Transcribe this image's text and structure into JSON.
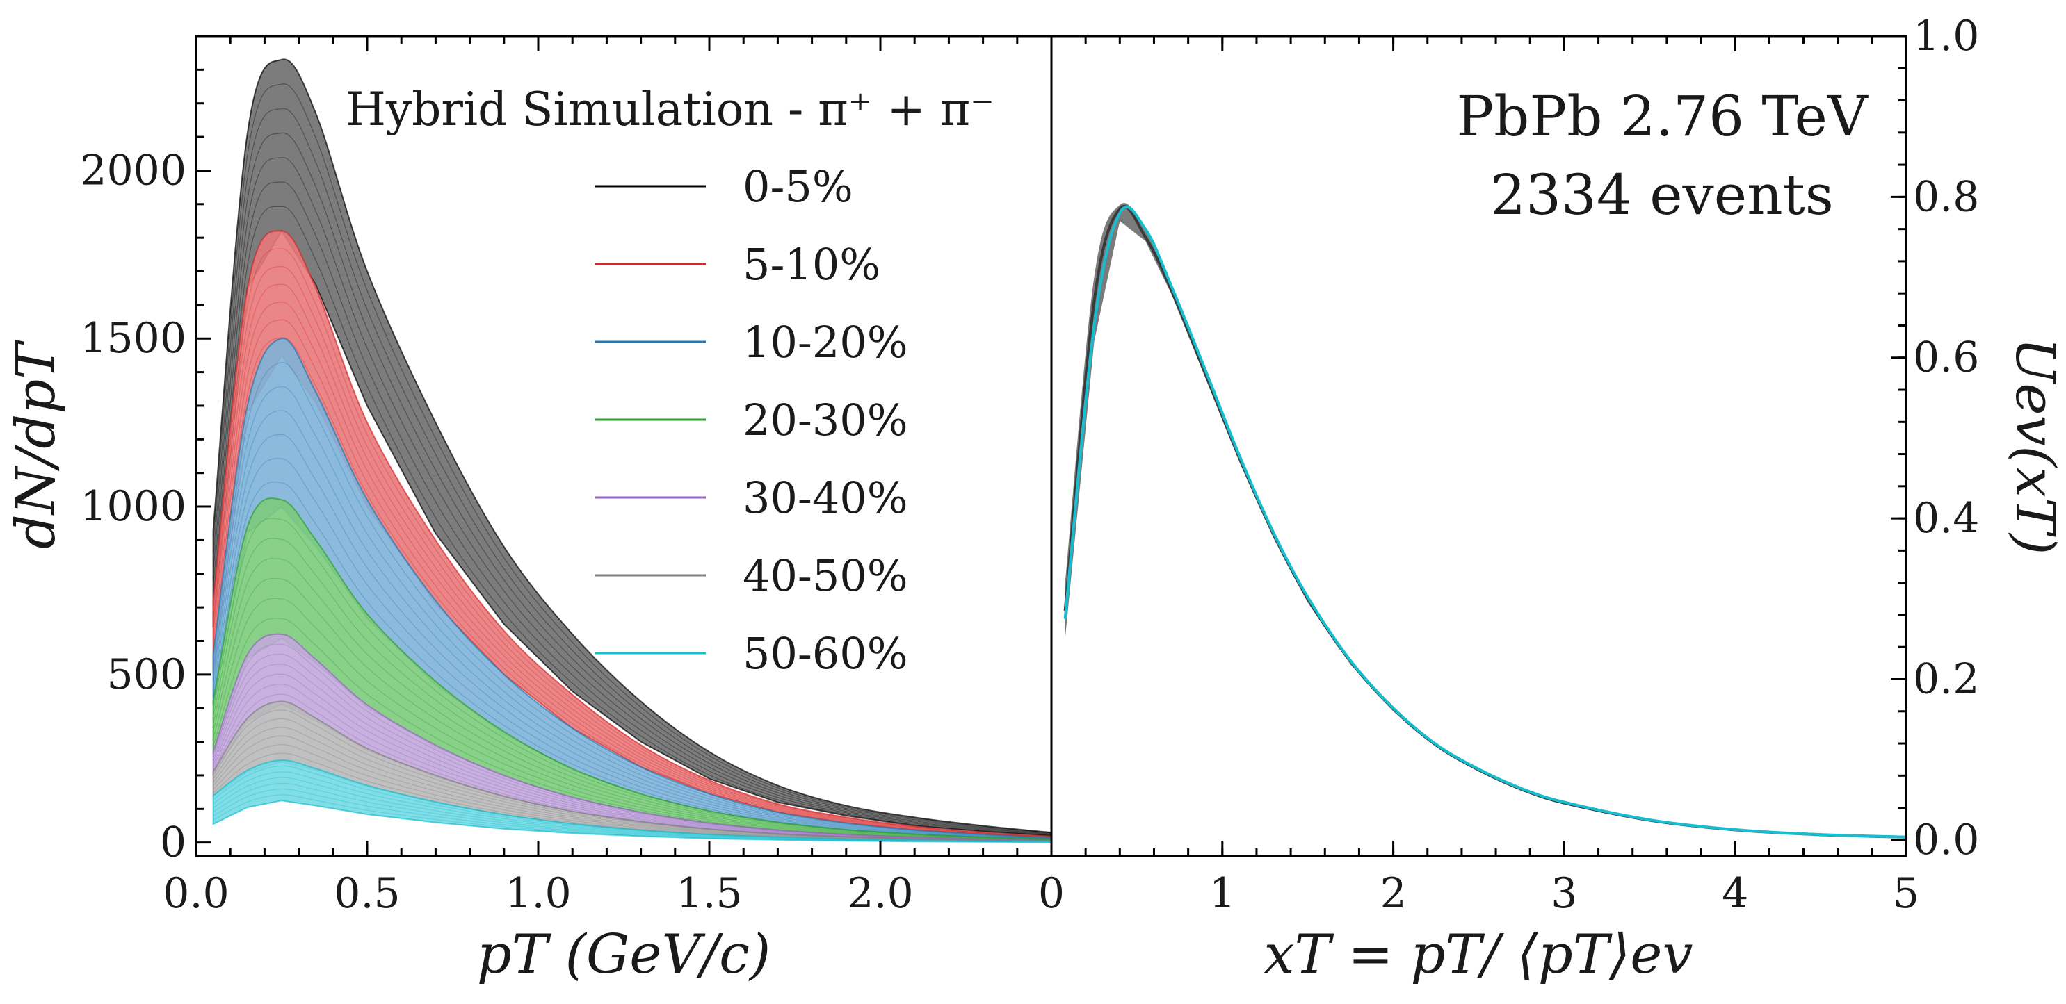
{
  "chart_data": [
    {
      "panel": "left",
      "type": "area",
      "title": "Hybrid Simulation - π⁺ + π⁻",
      "xlabel": "pT (GeV/c)",
      "ylabel": "dN/dpT",
      "xlim": [
        0,
        2.5
      ],
      "ylim": [
        -40,
        2400
      ],
      "xticks": [
        0.0,
        0.5,
        1.0,
        1.5,
        2.0
      ],
      "xtick_labels": [
        "0.0",
        "0.5",
        "1.0",
        "1.5",
        "2.0"
      ],
      "yticks": [
        0,
        500,
        1000,
        1500,
        2000
      ],
      "ytick_labels": [
        "0",
        "500",
        "1000",
        "1500",
        "2000"
      ],
      "x": [
        0.05,
        0.15,
        0.25,
        0.35,
        0.5,
        0.7,
        0.9,
        1.1,
        1.3,
        1.5,
        1.7,
        1.9,
        2.1,
        2.3,
        2.5
      ],
      "legend_position": "top-right",
      "series": [
        {
          "name": "0-5%",
          "color": "#000000",
          "fill": "#6e6e6e",
          "upper": [
            930,
            2110,
            2330,
            2170,
            1700,
            1250,
            880,
            620,
            420,
            270,
            170,
            110,
            75,
            50,
            30
          ],
          "lower": [
            640,
            1650,
            1820,
            1660,
            1300,
            920,
            650,
            450,
            300,
            190,
            120,
            80,
            50,
            33,
            20
          ]
        },
        {
          "name": "5-10%",
          "color": "#d62728",
          "fill": "#e8797a",
          "upper": [
            720,
            1650,
            1820,
            1650,
            1250,
            900,
            630,
            440,
            290,
            185,
            115,
            75,
            48,
            30,
            18
          ],
          "lower": [
            500,
            1280,
            1450,
            1310,
            1000,
            710,
            500,
            340,
            225,
            145,
            90,
            58,
            37,
            24,
            14
          ]
        },
        {
          "name": "10-20%",
          "color": "#1f77b4",
          "fill": "#7fb3d8",
          "upper": [
            560,
            1300,
            1500,
            1340,
            1020,
            720,
            500,
            340,
            225,
            145,
            90,
            58,
            37,
            24,
            14
          ]
        },
        {
          "name": "20-30%",
          "color": "#2ca02c",
          "fill": "#7ccb7c",
          "upper": [
            420,
            940,
            1020,
            900,
            680,
            480,
            330,
            220,
            145,
            94,
            60,
            38,
            25,
            16,
            10
          ]
        },
        {
          "name": "30-40%",
          "color": "#9467bd",
          "fill": "#c2a8dc",
          "upper": [
            270,
            560,
            620,
            545,
            410,
            290,
            200,
            135,
            90,
            58,
            37,
            24,
            16,
            10,
            6
          ]
        },
        {
          "name": "40-50%",
          "color": "#7f7f7f",
          "fill": "#b9b9b9",
          "upper": [
            210,
            370,
            420,
            370,
            280,
            200,
            138,
            93,
            62,
            40,
            26,
            17,
            11,
            7,
            4
          ]
        },
        {
          "name": "50-60%",
          "color": "#17becf",
          "fill": "#73d9e3",
          "upper": [
            140,
            215,
            245,
            220,
            170,
            121,
            83,
            56,
            37,
            24,
            16,
            10,
            7,
            4,
            3
          ],
          "lower": [
            55,
            105,
            125,
            110,
            84,
            60,
            41,
            28,
            19,
            12,
            8,
            5,
            3,
            2,
            1
          ]
        }
      ]
    },
    {
      "panel": "right",
      "type": "line",
      "annotation_line1": "PbPb 2.76 TeV",
      "annotation_line2": "2334 events",
      "xlabel": "xT = pT/ ⟨pT⟩ev",
      "ylabel": "Uev(xT)",
      "xlim": [
        0,
        5
      ],
      "ylim": [
        -0.02,
        1.0
      ],
      "xticks": [
        0,
        1,
        2,
        3,
        4,
        5
      ],
      "xtick_labels": [
        "0",
        "1",
        "2",
        "3",
        "4",
        "5"
      ],
      "yticks": [
        0.0,
        0.2,
        0.4,
        0.6,
        0.8,
        1.0
      ],
      "ytick_labels": [
        "0.0",
        "0.2",
        "0.4",
        "0.6",
        "0.8",
        "1.0"
      ],
      "x": [
        0.08,
        0.25,
        0.4,
        0.55,
        0.7,
        0.9,
        1.1,
        1.3,
        1.5,
        1.75,
        2.0,
        2.25,
        2.5,
        2.75,
        3.0,
        3.5,
        4.0,
        4.5,
        5.0
      ],
      "series": [
        {
          "name": "0-5%",
          "color": "#3a3a3a",
          "upper": [
            0.32,
            0.7,
            0.79,
            0.76,
            0.69,
            0.585,
            0.48,
            0.385,
            0.305,
            0.225,
            0.165,
            0.12,
            0.088,
            0.064,
            0.047,
            0.025,
            0.013,
            0.007,
            0.004
          ],
          "lower": [
            0.25,
            0.62,
            0.77,
            0.745,
            0.68,
            0.575,
            0.47,
            0.375,
            0.295,
            0.218,
            0.16,
            0.116,
            0.085,
            0.062,
            0.045,
            0.024,
            0.012,
            0.006,
            0.003
          ],
          "values": [
            0.285,
            0.67,
            0.785,
            0.75,
            0.685,
            0.58,
            0.475,
            0.38,
            0.3,
            0.222,
            0.163,
            0.118,
            0.087,
            0.063,
            0.046,
            0.0245,
            0.0125,
            0.0065,
            0.0035
          ]
        },
        {
          "name": "50-60%",
          "color": "#17becf",
          "values": [
            0.275,
            0.64,
            0.78,
            0.76,
            0.69,
            0.585,
            0.478,
            0.382,
            0.302,
            0.223,
            0.164,
            0.119,
            0.088,
            0.064,
            0.047,
            0.025,
            0.0128,
            0.0067,
            0.0036
          ]
        }
      ]
    }
  ]
}
